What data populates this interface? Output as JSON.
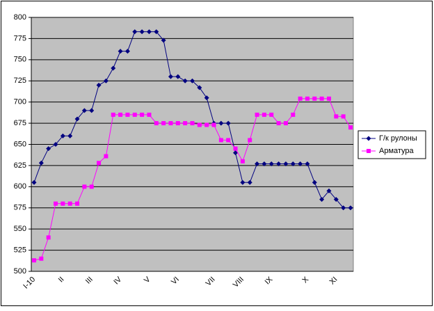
{
  "chart_data": {
    "type": "line",
    "categories": [
      "I-10",
      null,
      null,
      null,
      "II",
      null,
      null,
      null,
      "III",
      null,
      null,
      null,
      "IV",
      null,
      null,
      null,
      "V",
      null,
      null,
      null,
      "VI",
      null,
      null,
      null,
      null,
      "VII",
      null,
      null,
      null,
      "VIII",
      null,
      null,
      null,
      "IX",
      null,
      null,
      null,
      null,
      "X",
      null,
      null,
      null,
      "XI",
      null,
      null
    ],
    "series": [
      {
        "name": "Г/к рулоны",
        "color": "#000080",
        "marker": "diamond",
        "values": [
          605,
          628,
          645,
          650,
          660,
          660,
          680,
          690,
          690,
          720,
          725,
          740,
          760,
          760,
          783,
          783,
          783,
          783,
          773,
          730,
          730,
          725,
          725,
          717,
          705,
          675,
          675,
          675,
          640,
          605,
          605,
          627,
          627,
          627,
          627,
          627,
          627,
          627,
          627,
          605,
          585,
          595,
          585,
          575,
          575
        ]
      },
      {
        "name": "Арматура",
        "color": "#ff00ff",
        "marker": "square",
        "values": [
          513,
          515,
          540,
          580,
          580,
          580,
          580,
          600,
          600,
          628,
          636,
          685,
          685,
          685,
          685,
          685,
          685,
          675,
          675,
          675,
          675,
          675,
          675,
          673,
          673,
          673,
          655,
          655,
          645,
          630,
          655,
          685,
          685,
          685,
          675,
          675,
          685,
          704,
          704,
          704,
          704,
          704,
          683,
          683,
          670
        ]
      }
    ],
    "ylim": [
      500,
      800
    ],
    "yticks": [
      500,
      525,
      550,
      575,
      600,
      625,
      650,
      675,
      700,
      725,
      750,
      775,
      800
    ],
    "grid": true,
    "legend": "right"
  }
}
